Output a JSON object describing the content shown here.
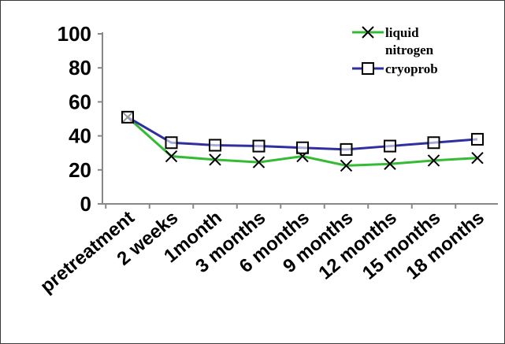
{
  "chart_data": {
    "type": "line",
    "title": "",
    "xlabel": "",
    "ylabel": "",
    "categories": [
      "pretreatment",
      "2 weeks",
      "1month",
      "3 months",
      "6 months",
      "9 months",
      "12 months",
      "15 months",
      "18 months"
    ],
    "ylim": [
      0,
      100
    ],
    "yticks": [
      "0",
      "20",
      "40",
      "60",
      "80",
      "100"
    ],
    "grid": false,
    "legend_position": "top-right",
    "series": [
      {
        "name": "liquid nitrogen",
        "color": "#33bb33",
        "marker": "x",
        "values": [
          51,
          28,
          26,
          24.5,
          28,
          22.5,
          23.5,
          25.5,
          27
        ]
      },
      {
        "name": "cryoprob",
        "color": "#2f2fa0",
        "marker": "square",
        "values": [
          51,
          36,
          34.5,
          34,
          33,
          32,
          34,
          36,
          38
        ]
      }
    ],
    "legend": {
      "line1": "liquid",
      "line2": "nitrogen",
      "line3": "cryoprob"
    }
  }
}
